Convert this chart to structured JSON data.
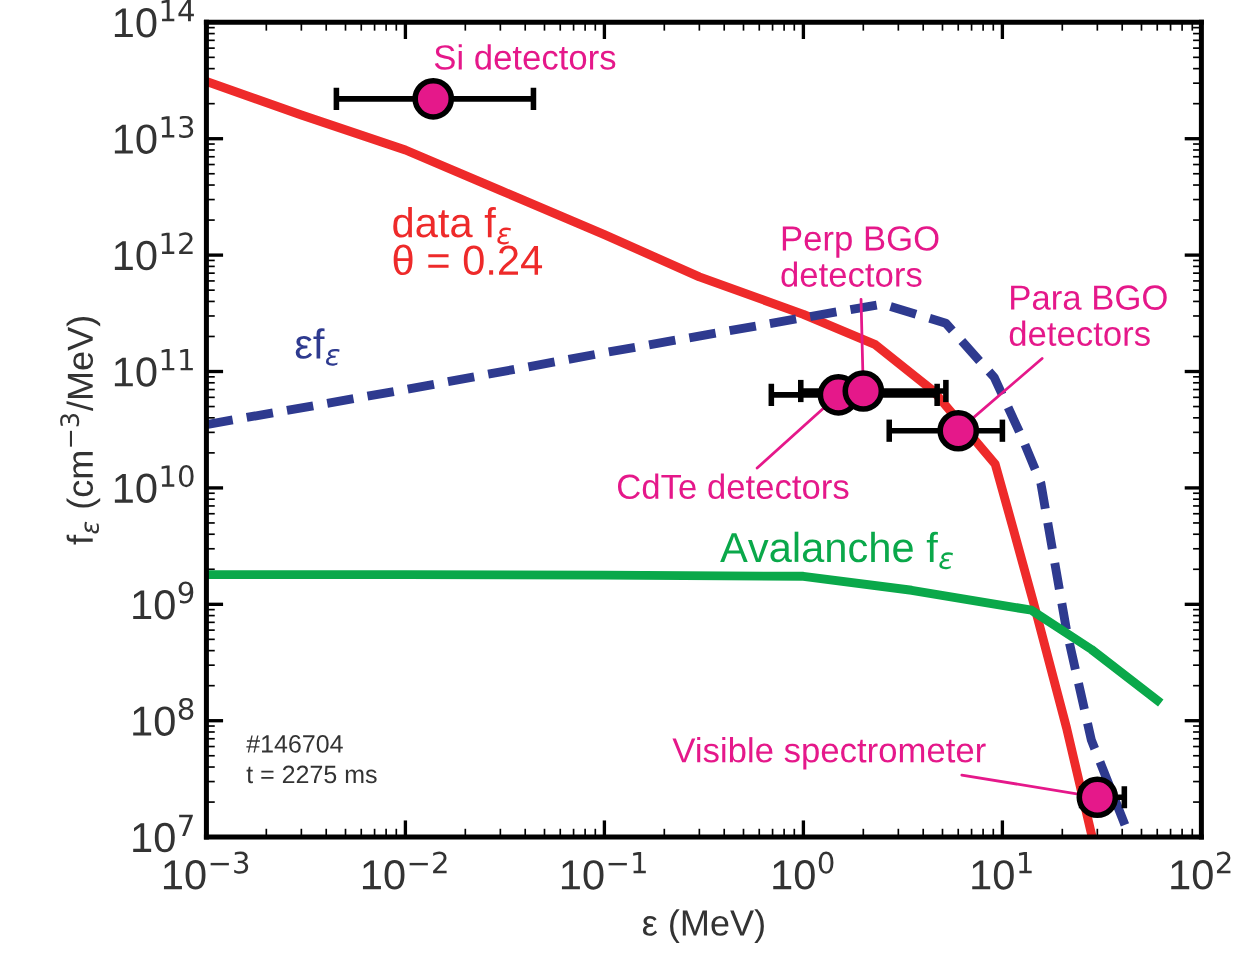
{
  "chart_data": {
    "type": "line",
    "xlabel": "ε (MeV)",
    "ylabel": "f$_{ε}$ (cm$^{−3}$/MeV)",
    "log": "xy",
    "grid": false,
    "xlim": [
      0.001,
      100
    ],
    "ylim": [
      10000000.0,
      100000000000000.0
    ],
    "xticks": [
      {
        "value": 0.001,
        "label": "10$^{−3}$"
      },
      {
        "value": 0.01,
        "label": "10$^{−2}$"
      },
      {
        "value": 0.1,
        "label": "10$^{−1}$"
      },
      {
        "value": 1,
        "label": "10$^{0}$"
      },
      {
        "value": 10,
        "label": "10$^{1}$"
      },
      {
        "value": 100,
        "label": "10$^{2}$"
      }
    ],
    "yticks": [
      {
        "value": 10000000.0,
        "label": "10$^{7}$"
      },
      {
        "value": 100000000.0,
        "label": "10$^{8}$"
      },
      {
        "value": 1000000000.0,
        "label": "10$^{9}$"
      },
      {
        "value": 10000000000.0,
        "label": "10$^{10}$"
      },
      {
        "value": 100000000000.0,
        "label": "10$^{11}$"
      },
      {
        "value": 1000000000000.0,
        "label": "10$^{12}$"
      },
      {
        "value": 10000000000000.0,
        "label": "10$^{13}$"
      },
      {
        "value": 100000000000000.0,
        "label": "10$^{14}$"
      }
    ],
    "series": [
      {
        "name": "data f$_{ε}$\nθ = 0.24",
        "color": "#ee2a2a",
        "line_style": "solid",
        "x": [
          0.001,
          0.003,
          0.01,
          0.03,
          0.1,
          0.3,
          1.0,
          2.3,
          4.5,
          9.2,
          11.4,
          14.3,
          21,
          28
        ],
        "values": [
          31000000000000.0,
          16000000000000.0,
          8000000000000.0,
          3600000000000.0,
          1500000000000.0,
          650000000000.0,
          310000000000.0,
          170000000000.0,
          68000000000.0,
          16000000000.0,
          4300000000.0,
          1050000000.0,
          87000000.0,
          10700000.0
        ]
      },
      {
        "name": "εf$_{ε}$",
        "color": "#2e3a8f",
        "line_style": "dashed",
        "x": [
          0.001,
          0.01,
          0.1,
          1.0,
          2.5,
          5.2,
          9.1,
          12.5,
          15.6,
          21,
          28,
          43
        ],
        "values": [
          35000000000.0,
          70000000000.0,
          145000000000.0,
          290000000000.0,
          380000000000.0,
          260000000000.0,
          89000000000.0,
          27500000000.0,
          11000000000.0,
          600000000.0,
          68000000.0,
          10700000.0
        ]
      },
      {
        "name": "Avalanche f$_{ε}$",
        "color": "#0aa84a",
        "line_style": "solid",
        "x": [
          0.001,
          0.01,
          0.1,
          1.0,
          3.5,
          14,
          28,
          60
        ],
        "values": [
          1800000000.0,
          1800000000.0,
          1780000000.0,
          1740000000.0,
          1320000000.0,
          890000000.0,
          410000000.0,
          150000000.0
        ]
      },
      {
        "type": "scatter",
        "color": "#e5188a",
        "marker": "circle",
        "x": [
          0.0138,
          1.5,
          2.0,
          6.0,
          30
        ],
        "values": [
          22000000000000.0,
          63000000000.0,
          68000000000.0,
          31000000000.0,
          22000000.0
        ],
        "xerrors": [
          [
            0.0045,
            0.044
          ],
          [
            0.69,
            4.7
          ],
          [
            0.97,
            5.2
          ],
          [
            2.7,
            10
          ],
          [
            25,
            41
          ]
        ]
      }
    ],
    "annotations": [
      {
        "text": "Si detectors",
        "x": 0.0138,
        "y": 22000000000000.0
      },
      {
        "text": "Perp BGO\ndetectors",
        "x": 2.0,
        "y": 68000000000.0
      },
      {
        "text": "CdTe detectors",
        "x": 1.5,
        "y": 63000000000.0
      },
      {
        "text": "Para BGO\ndetectors",
        "x": 6.0,
        "y": 31000000000.0
      },
      {
        "text": "Visible spectrometer",
        "x": 30,
        "y": 22000000.0
      },
      "#146704\nt = 2275 ms"
    ]
  }
}
